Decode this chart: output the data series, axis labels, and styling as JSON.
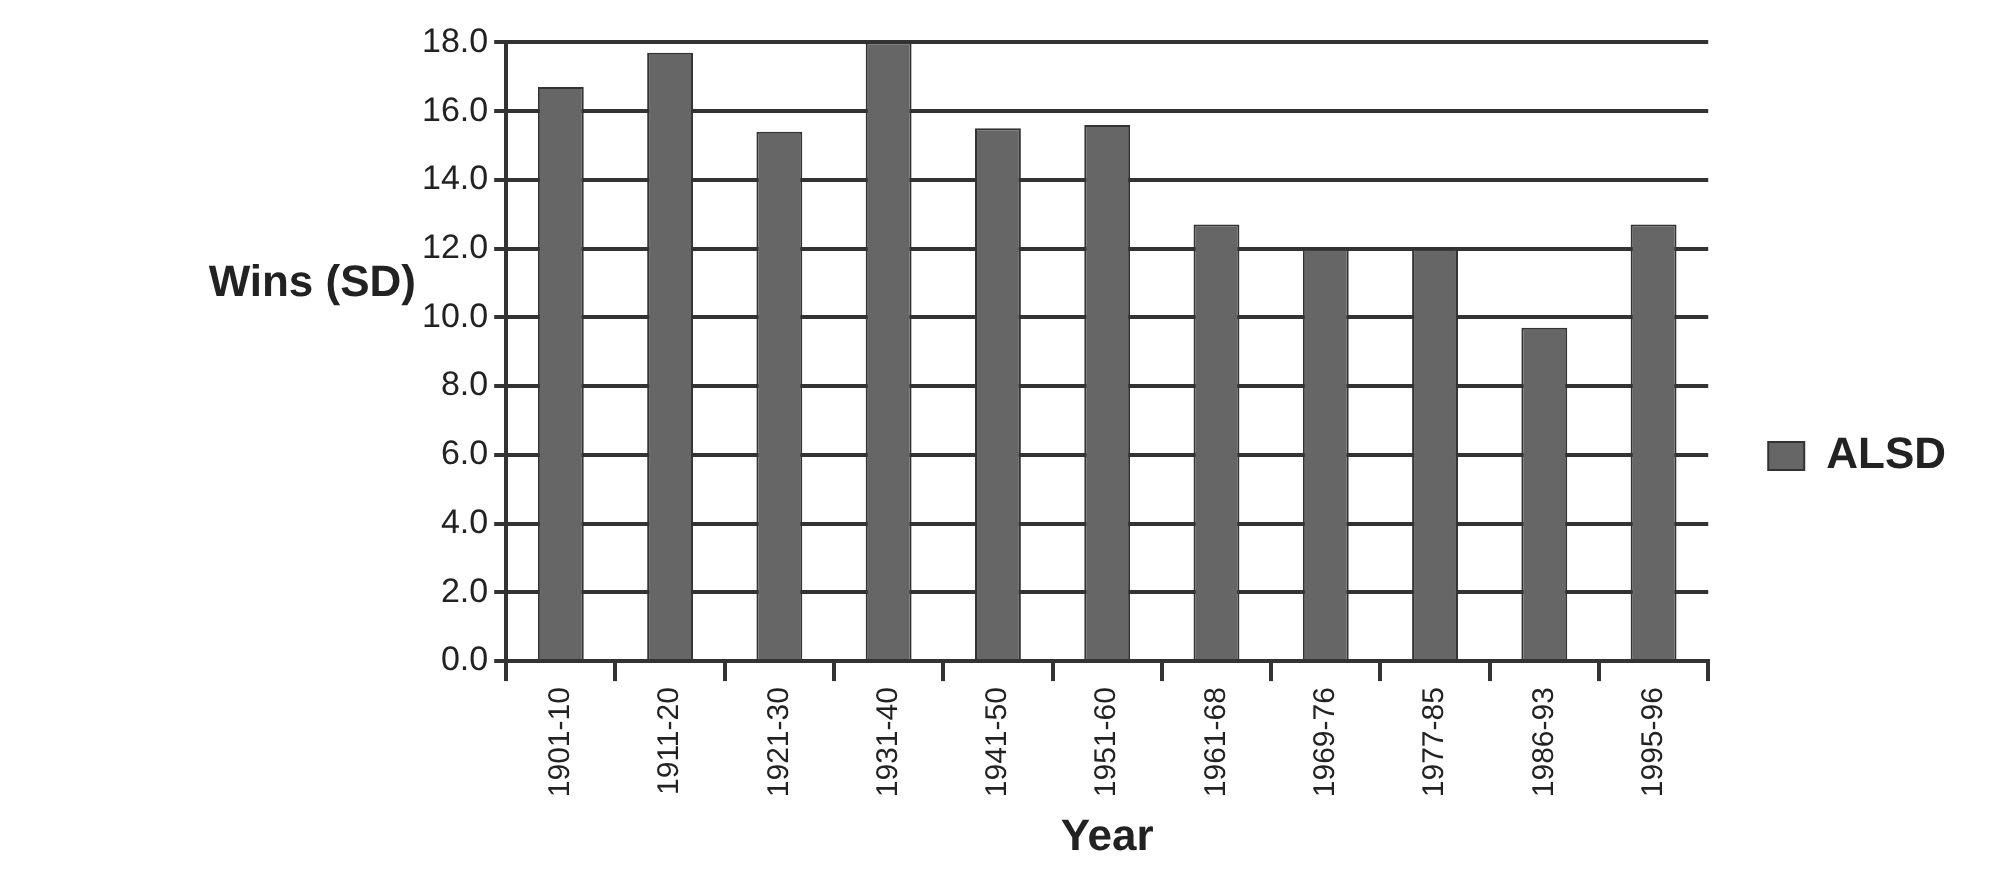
{
  "chart_data": {
    "type": "bar",
    "xlabel": "Year",
    "ylabel": "Wins  (SD)",
    "categories": [
      "1901-10",
      "1911-20",
      "1921-30",
      "1931-40",
      "1941-50",
      "1951-60",
      "1961-68",
      "1969-76",
      "1977-85",
      "1986-93",
      "1995-96"
    ],
    "series": [
      {
        "name": "ALSD",
        "color": "#666666",
        "values": [
          16.7,
          17.7,
          15.4,
          18.0,
          15.5,
          15.6,
          12.7,
          12.0,
          12.0,
          9.7,
          12.7
        ]
      }
    ],
    "ylim": [
      0,
      18
    ],
    "yticks": [
      {
        "value": 0,
        "label": "0.0"
      },
      {
        "value": 2,
        "label": "2.0"
      },
      {
        "value": 4,
        "label": "4.0"
      },
      {
        "value": 6,
        "label": "6.0"
      },
      {
        "value": 8,
        "label": "8.0"
      },
      {
        "value": 10,
        "label": "10.0"
      },
      {
        "value": 12,
        "label": "12.0"
      },
      {
        "value": 14,
        "label": "14.0"
      },
      {
        "value": 16,
        "label": "16.0"
      },
      {
        "value": 18,
        "label": "18.0"
      }
    ],
    "grid": "y",
    "legend": "right"
  }
}
